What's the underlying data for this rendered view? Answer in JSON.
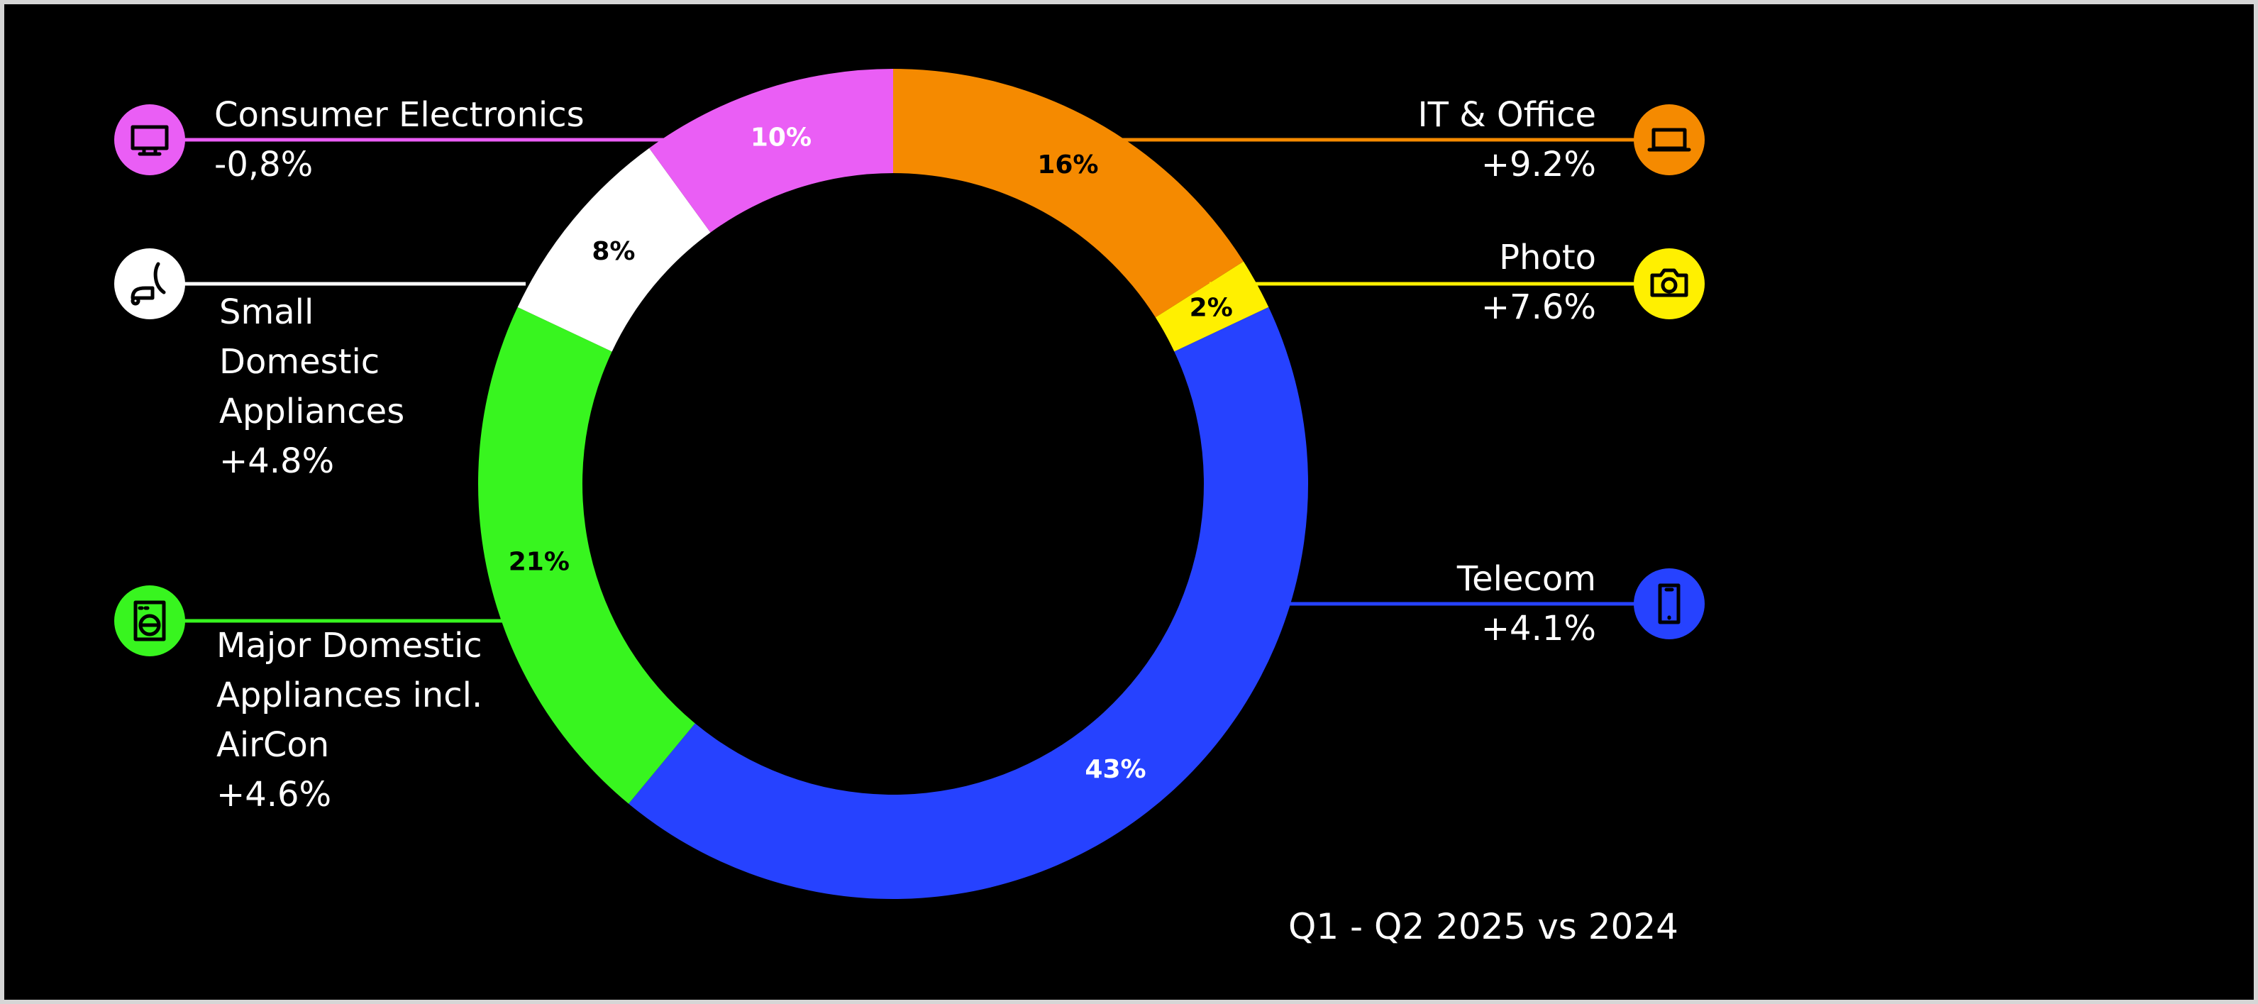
{
  "chart_data": {
    "type": "donut",
    "categories": [
      "IT & Office",
      "Photo",
      "Telecom",
      "Major Domestic Appliances incl. AirCon",
      "Small Domestic Appliances",
      "Consumer Electronics"
    ],
    "values": [
      16,
      2,
      43,
      21,
      8,
      10
    ],
    "value_labels": [
      "16%",
      "2%",
      "43%",
      "21%",
      "8%",
      "10%"
    ],
    "changes": [
      "+9.2%",
      "+7.6%",
      "+4.1%",
      "+4.6%",
      "+4.8%",
      "-0,8%"
    ],
    "colors": [
      "#f58a00",
      "#fff000",
      "#2642ff",
      "#38f51f",
      "#ffffff",
      "#ea5ef5"
    ],
    "subtitle": "Q1 - Q2 2025 vs 2024"
  }
}
